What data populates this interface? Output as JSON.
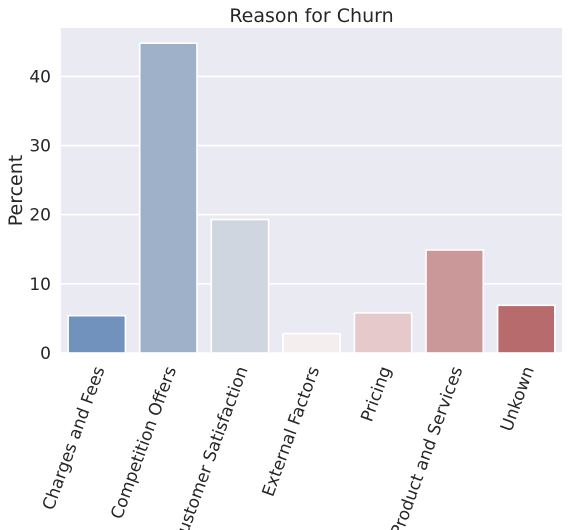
{
  "chart_data": {
    "type": "bar",
    "title": "Reason for Churn",
    "xlabel": "",
    "ylabel": "Percent",
    "categories": [
      "Charges and Fees",
      "Competition Offers",
      "Customer Satisfaction",
      "External Factors",
      "Pricing",
      "Product and Services",
      "Unkown"
    ],
    "values": [
      5.4,
      44.8,
      19.3,
      2.8,
      5.8,
      14.9,
      6.9
    ],
    "colors": [
      "#7092bd",
      "#9fb0c9",
      "#d0d6df",
      "#f5eeee",
      "#e5c9cb",
      "#ca9898",
      "#b86b6c"
    ],
    "ylim": [
      0,
      47
    ],
    "yticks": [
      0,
      10,
      20,
      30,
      40
    ],
    "grid": true,
    "background": "#eaeaf2"
  }
}
